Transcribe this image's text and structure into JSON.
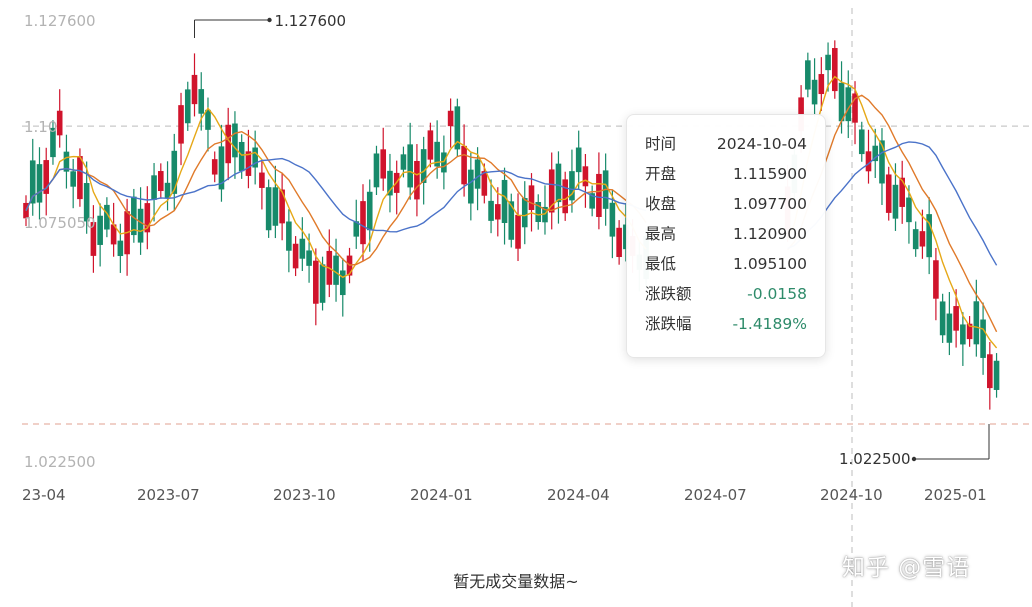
{
  "chart_data": {
    "type": "candlestick",
    "y_axis_labels": [
      "1.127600",
      "1.10",
      "1.075050",
      "1.022500"
    ],
    "x_tick_labels": [
      "23-04",
      "2023-07",
      "2023-10",
      "2024-01",
      "2024-04",
      "2024-07",
      "2024-10",
      "2025-01"
    ],
    "ylim": [
      1.0225,
      1.1276
    ],
    "max_label": "1.127600",
    "min_label": "1.022500",
    "ma_lines": [
      {
        "color": "#e6a817"
      },
      {
        "color": "#e07a2a"
      },
      {
        "color": "#4b73c9"
      }
    ],
    "up_color": "#d0142c",
    "down_color": "#178a6a",
    "crosshair_y": 1.1,
    "ref_line_y": 1.0225
  },
  "tooltip": {
    "rows": [
      {
        "label": "时间",
        "value": "2024-10-04"
      },
      {
        "label": "开盘",
        "value": "1.115900"
      },
      {
        "label": "收盘",
        "value": "1.097700"
      },
      {
        "label": "最高",
        "value": "1.120900"
      },
      {
        "label": "最低",
        "value": "1.095100"
      },
      {
        "label": "涨跌额",
        "value": "-0.0158"
      },
      {
        "label": "涨跌幅",
        "value": "-1.4189%"
      }
    ]
  },
  "volume_empty_text": "暂无成交量数据~",
  "watermark": "知乎 @雪语"
}
